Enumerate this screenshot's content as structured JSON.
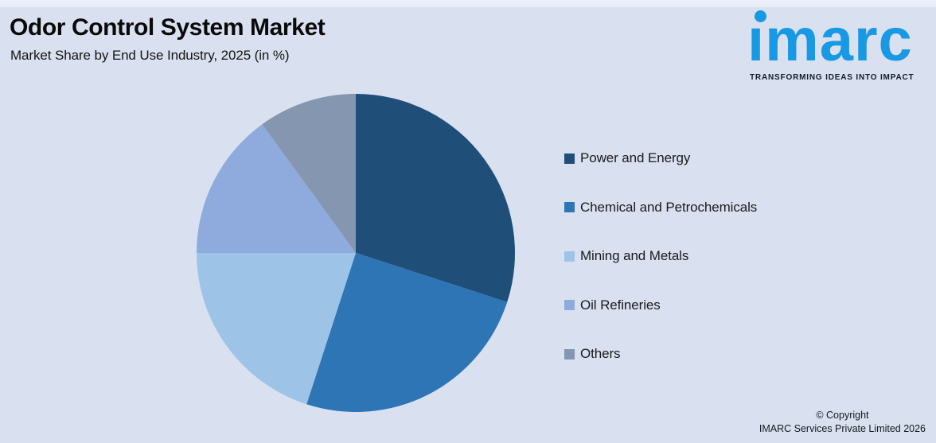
{
  "background": {
    "canvas_color": "#d9e0f0",
    "top_strip_color": "#e9eef8"
  },
  "header": {
    "title": "Odor Control System Market",
    "subtitle": "Market Share by End Use Industry, 2025 (in %)"
  },
  "logo": {
    "wordmark": "imarc",
    "tagline": "TRANSFORMING IDEAS INTO IMPACT",
    "brand_color": "#1899e3",
    "tagline_color": "#101c2c"
  },
  "chart_data": {
    "type": "pie",
    "title": "Odor Control System Market",
    "subtitle": "Market Share by End Use Industry, 2025 (in %)",
    "unit": "%",
    "start_angle_deg": 0,
    "direction": "clockwise",
    "legend_position": "right",
    "data_labels_shown": false,
    "segments": [
      {
        "label": "Power and Energy",
        "value": 30,
        "color": "#1f4e79"
      },
      {
        "label": "Chemical and Petrochemicals",
        "value": 25,
        "color": "#2e75b6"
      },
      {
        "label": "Mining and Metals",
        "value": 20,
        "color": "#9dc3e6"
      },
      {
        "label": "Oil Refineries",
        "value": 15,
        "color": "#8faadc"
      },
      {
        "label": "Others",
        "value": 10,
        "color": "#8496b0"
      }
    ]
  },
  "footer": {
    "copyright_line1": "© Copyright",
    "copyright_line2": "IMARC Services Private Limited 2026"
  }
}
